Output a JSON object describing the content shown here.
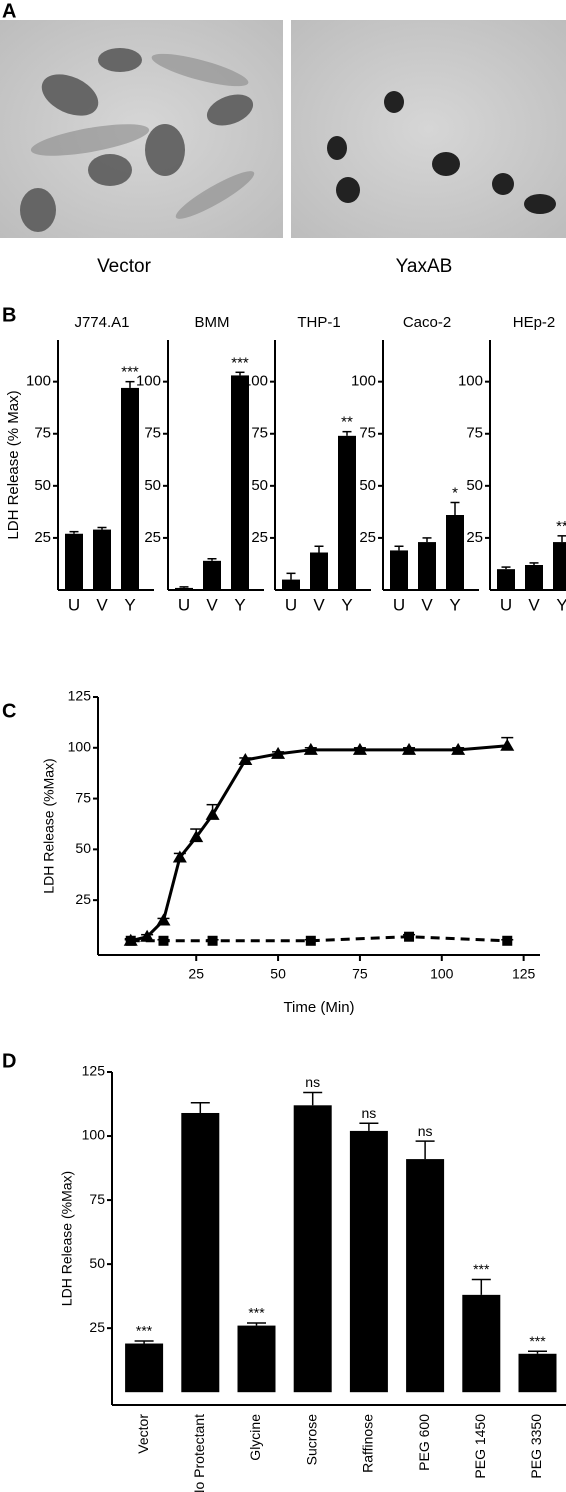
{
  "panel_labels": [
    "A",
    "B",
    "C",
    "D"
  ],
  "panel_a": {
    "captions": [
      "Vector",
      "YaxAB"
    ]
  },
  "chart_data": [
    {
      "type": "bar",
      "title": "J774.A1",
      "ylabel": "LDH Release (% Max)",
      "categories": [
        "U",
        "V",
        "Y"
      ],
      "values": [
        27,
        29,
        97
      ],
      "errors": [
        1,
        1,
        3
      ],
      "annotations": [
        null,
        null,
        "***"
      ],
      "color": "#000000",
      "ylim": [
        0,
        120
      ],
      "yticks": [
        25,
        50,
        75,
        100
      ]
    },
    {
      "type": "bar",
      "title": "BMM",
      "categories": [
        "U",
        "V",
        "Y"
      ],
      "values": [
        1,
        14,
        103
      ],
      "errors": [
        0.5,
        1,
        1.5
      ],
      "annotations": [
        null,
        null,
        "***"
      ],
      "color": "#000000",
      "ylim": [
        0,
        120
      ],
      "yticks": [
        25,
        50,
        75,
        100
      ]
    },
    {
      "type": "bar",
      "title": "THP-1",
      "categories": [
        "U",
        "V",
        "Y"
      ],
      "values": [
        5,
        18,
        74
      ],
      "errors": [
        3,
        3,
        2
      ],
      "annotations": [
        null,
        null,
        "**"
      ],
      "color": "#000000",
      "ylim": [
        0,
        120
      ],
      "yticks": [
        25,
        50,
        75,
        100
      ]
    },
    {
      "type": "bar",
      "title": "Caco-2",
      "categories": [
        "U",
        "V",
        "Y"
      ],
      "values": [
        19,
        23,
        36
      ],
      "errors": [
        2,
        2,
        6
      ],
      "annotations": [
        null,
        null,
        "*"
      ],
      "color": "#000000",
      "ylim": [
        0,
        120
      ],
      "yticks": [
        25,
        50,
        75,
        100
      ]
    },
    {
      "type": "bar",
      "title": "HEp-2",
      "categories": [
        "U",
        "V",
        "Y"
      ],
      "values": [
        10,
        12,
        23
      ],
      "errors": [
        1,
        1,
        3
      ],
      "annotations": [
        null,
        null,
        "**"
      ],
      "color": "#000000",
      "ylim": [
        0,
        120
      ],
      "yticks": [
        25,
        50,
        75,
        100
      ]
    },
    {
      "type": "line",
      "xlabel": "Time (Min)",
      "ylabel": "LDH Release (%Max)",
      "series": [
        {
          "color": "#000000",
          "marker": "triangle",
          "dashed": false,
          "x": [
            5,
            10,
            15,
            20,
            25,
            30,
            40,
            50,
            60,
            75,
            90,
            105,
            120
          ],
          "values": [
            5,
            7,
            15,
            46,
            56,
            67,
            94,
            97,
            99,
            99,
            99,
            99,
            101
          ],
          "errors": [
            1,
            1,
            1,
            2,
            4,
            5,
            1,
            1,
            1,
            1,
            1,
            1,
            4
          ]
        },
        {
          "color": "#000000",
          "marker": "square",
          "dashed": true,
          "x": [
            5,
            15,
            30,
            60,
            90,
            120
          ],
          "values": [
            5,
            5,
            5,
            5,
            7,
            5
          ],
          "errors": [
            0.5,
            0.5,
            0.5,
            0.5,
            1,
            0.5
          ]
        }
      ],
      "xlim": [
        -5,
        130
      ],
      "xticks": [
        25,
        50,
        75,
        100,
        125
      ],
      "ylim": [
        -2,
        125
      ],
      "yticks": [
        25,
        50,
        75,
        100,
        125
      ]
    },
    {
      "type": "bar",
      "ylabel": "LDH Release (%Max)",
      "categories": [
        "Vector",
        "No Protectant",
        "Glycine",
        "Sucrose",
        "Raffinose",
        "PEG 600",
        "PEG 1450",
        "PEG 3350"
      ],
      "values": [
        19,
        109,
        26,
        112,
        102,
        91,
        38,
        15
      ],
      "errors": [
        1,
        4,
        1,
        5,
        3,
        7,
        6,
        1
      ],
      "annotations": [
        "***",
        null,
        "***",
        "ns",
        "ns",
        "ns",
        "***",
        "***"
      ],
      "color": "#000000",
      "ylim": [
        -5,
        125
      ],
      "yticks": [
        25,
        50,
        75,
        100,
        125
      ]
    }
  ]
}
